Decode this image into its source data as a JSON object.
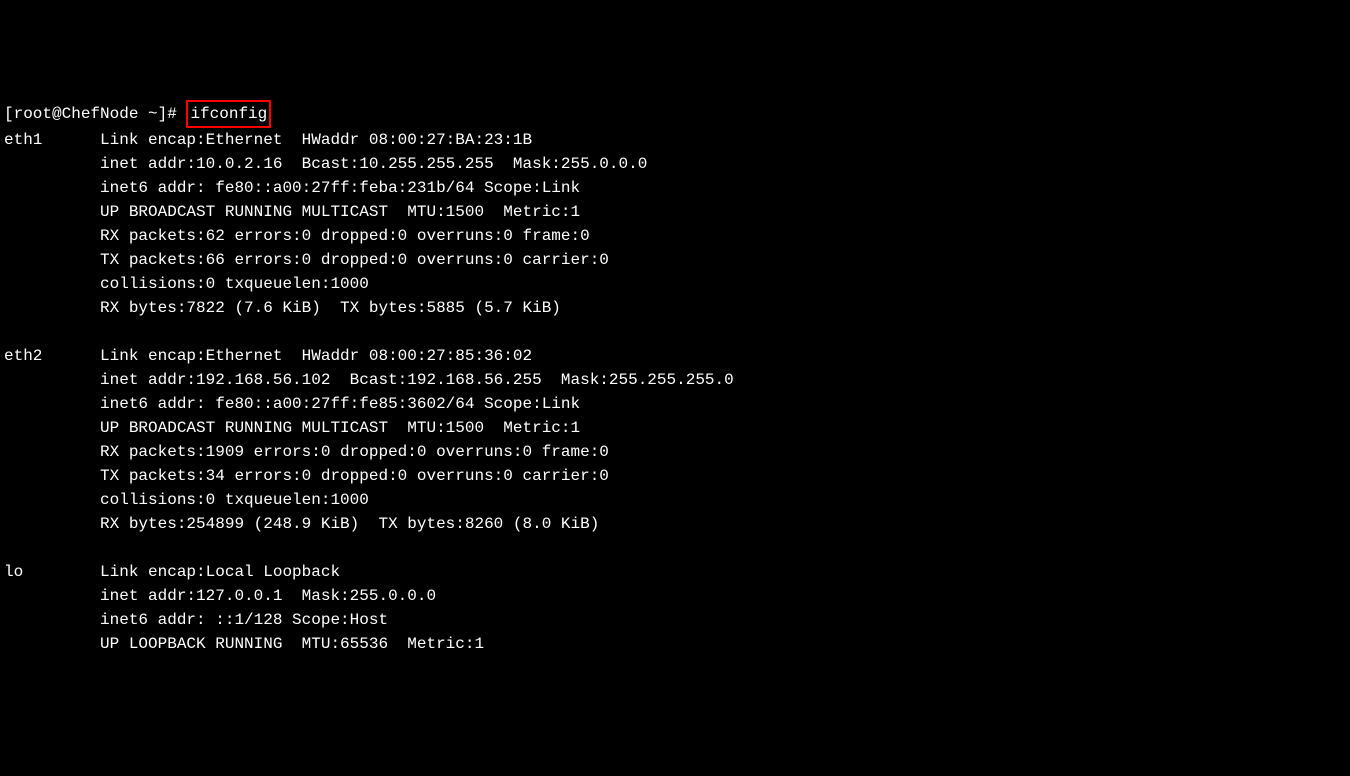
{
  "terminal": {
    "background_color": "#000000",
    "text_color": "#ffffff",
    "font_family": "Courier New",
    "font_size": 16,
    "highlight_border_color": "#ff0000",
    "prompt": "[root@ChefNode ~]# ",
    "command": "ifconfig",
    "interfaces": [
      {
        "name": "eth1",
        "lines": [
          "Link encap:Ethernet  HWaddr 08:00:27:BA:23:1B",
          "inet addr:10.0.2.16  Bcast:10.255.255.255  Mask:255.0.0.0",
          "inet6 addr: fe80::a00:27ff:feba:231b/64 Scope:Link",
          "UP BROADCAST RUNNING MULTICAST  MTU:1500  Metric:1",
          "RX packets:62 errors:0 dropped:0 overruns:0 frame:0",
          "TX packets:66 errors:0 dropped:0 overruns:0 carrier:0",
          "collisions:0 txqueuelen:1000",
          "RX bytes:7822 (7.6 KiB)  TX bytes:5885 (5.7 KiB)"
        ]
      },
      {
        "name": "eth2",
        "lines": [
          "Link encap:Ethernet  HWaddr 08:00:27:85:36:02",
          "inet addr:192.168.56.102  Bcast:192.168.56.255  Mask:255.255.255.0",
          "inet6 addr: fe80::a00:27ff:fe85:3602/64 Scope:Link",
          "UP BROADCAST RUNNING MULTICAST  MTU:1500  Metric:1",
          "RX packets:1909 errors:0 dropped:0 overruns:0 frame:0",
          "TX packets:34 errors:0 dropped:0 overruns:0 carrier:0",
          "collisions:0 txqueuelen:1000",
          "RX bytes:254899 (248.9 KiB)  TX bytes:8260 (8.0 KiB)"
        ]
      },
      {
        "name": "lo",
        "lines": [
          "Link encap:Local Loopback",
          "inet addr:127.0.0.1  Mask:255.0.0.0",
          "inet6 addr: ::1/128 Scope:Host",
          "UP LOOPBACK RUNNING  MTU:65536  Metric:1"
        ]
      }
    ],
    "interface_col_width": 10,
    "detail_indent": 10
  }
}
